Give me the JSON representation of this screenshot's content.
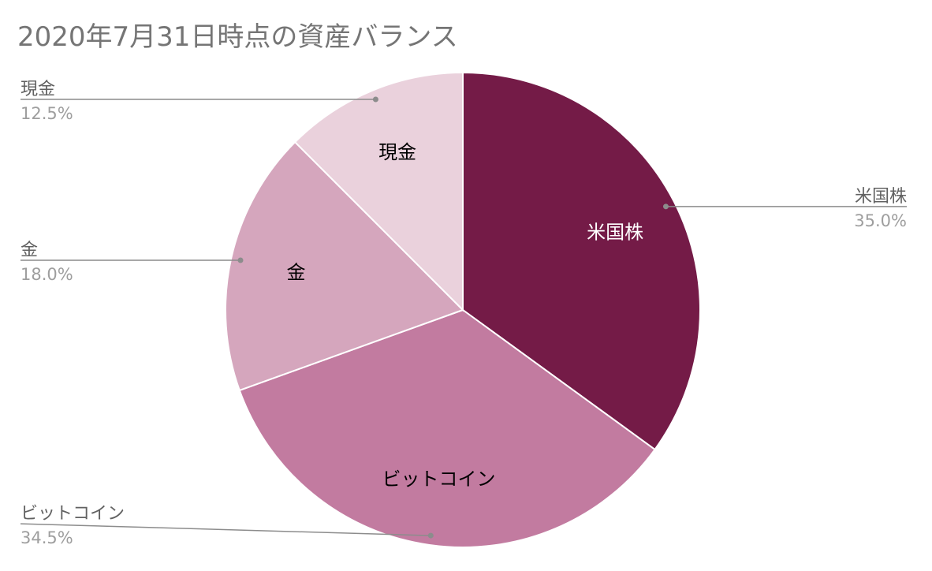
{
  "chart_data": {
    "type": "pie",
    "title": "2020年7月31日時点の資産バランス",
    "slices": [
      {
        "label": "米国株",
        "value": 35.0,
        "percent_text": "35.0%",
        "color": "#741b47",
        "label_color": "#ffffff",
        "legend_side": "right"
      },
      {
        "label": "ビットコイン",
        "value": 34.5,
        "percent_text": "34.5%",
        "color": "#c27ba0",
        "label_color": "#000000",
        "legend_side": "left"
      },
      {
        "label": "金",
        "value": 18.0,
        "percent_text": "18.0%",
        "color": "#d5a6bd",
        "label_color": "#000000",
        "legend_side": "left"
      },
      {
        "label": "現金",
        "value": 12.5,
        "percent_text": "12.5%",
        "color": "#ead1dc",
        "label_color": "#000000",
        "legend_side": "left"
      }
    ],
    "start_angle": "12 o'clock",
    "direction": "clockwise",
    "legend": "callout labels beside slices"
  }
}
